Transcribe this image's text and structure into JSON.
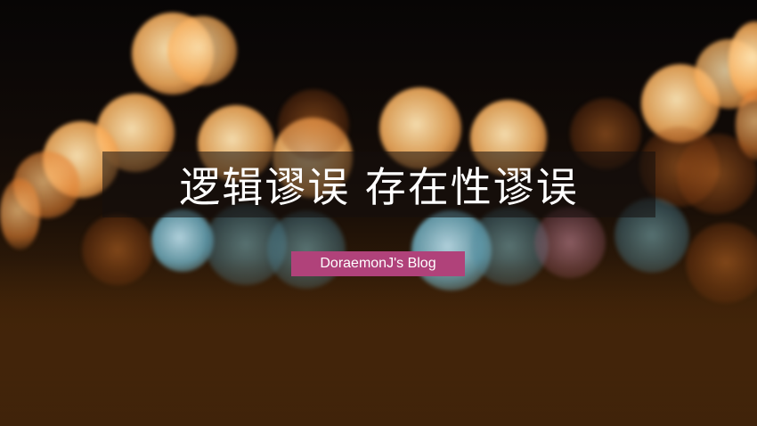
{
  "title": "逻辑谬误 存在性谬误",
  "subtitle": "DoraemonJ's Blog",
  "colors": {
    "subtitle_badge": "#b0427a",
    "title_backdrop": "rgba(20,14,12,0.55)",
    "text": "#ffffff"
  }
}
